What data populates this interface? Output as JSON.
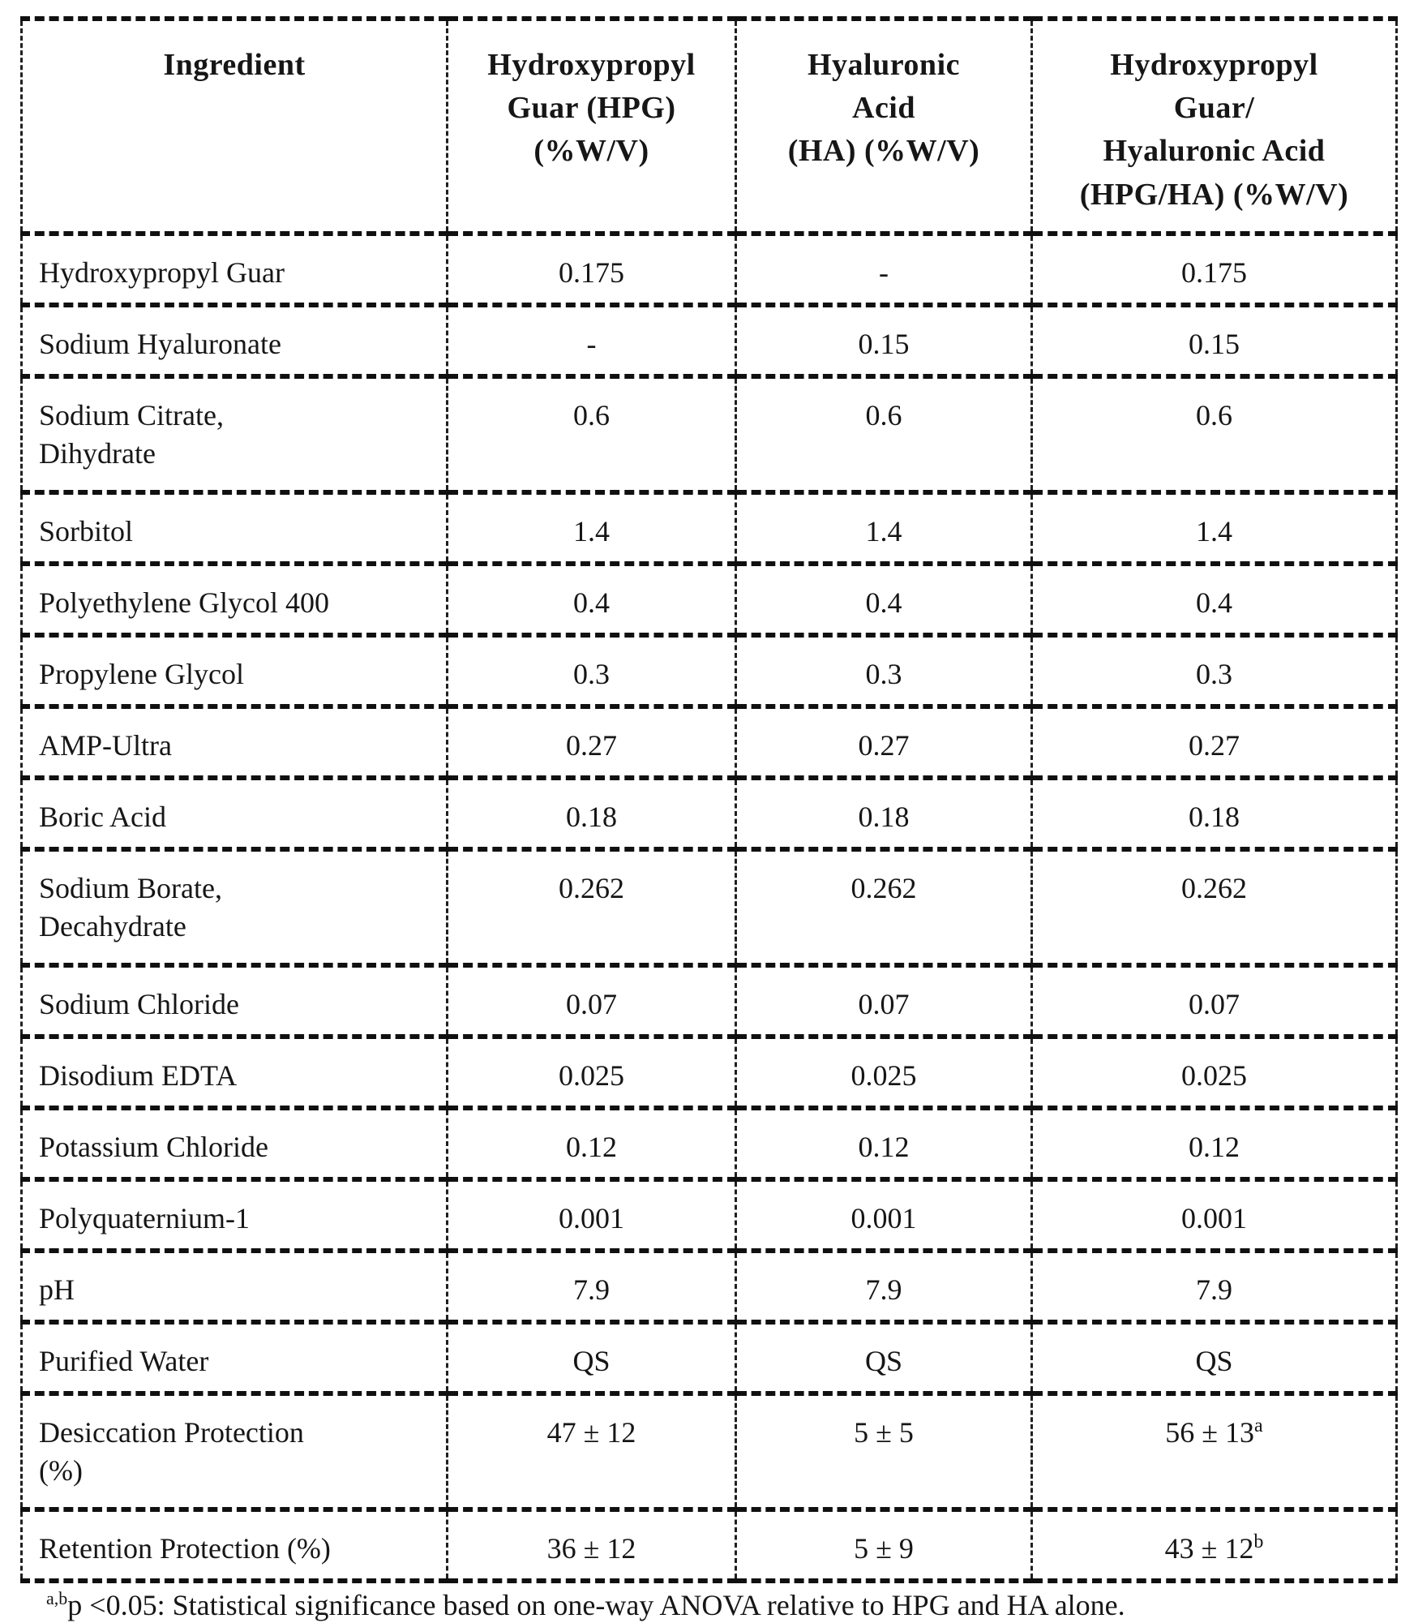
{
  "table": {
    "headers": [
      "Ingredient",
      "Hydroxypropyl\nGuar (HPG)\n(%W/V)",
      "Hyaluronic\nAcid\n(HA) (%W/V)",
      "Hydroxypropyl\nGuar/\nHyaluronic Acid\n(HPG/HA) (%W/V)"
    ],
    "rows": [
      {
        "ingredient": "Hydroxypropyl Guar",
        "hpg": "0.175",
        "ha": "-",
        "hpg_ha": "0.175"
      },
      {
        "ingredient": "Sodium Hyaluronate",
        "hpg": "-",
        "ha": "0.15",
        "hpg_ha": "0.15"
      },
      {
        "ingredient": "Sodium Citrate,\nDihydrate",
        "hpg": "0.6",
        "ha": "0.6",
        "hpg_ha": "0.6"
      },
      {
        "ingredient": "Sorbitol",
        "hpg": "1.4",
        "ha": "1.4",
        "hpg_ha": "1.4"
      },
      {
        "ingredient": "Polyethylene Glycol 400",
        "hpg": "0.4",
        "ha": "0.4",
        "hpg_ha": "0.4"
      },
      {
        "ingredient": "Propylene Glycol",
        "hpg": "0.3",
        "ha": "0.3",
        "hpg_ha": "0.3"
      },
      {
        "ingredient": "AMP-Ultra",
        "hpg": "0.27",
        "ha": "0.27",
        "hpg_ha": "0.27"
      },
      {
        "ingredient": "Boric Acid",
        "hpg": "0.18",
        "ha": "0.18",
        "hpg_ha": "0.18"
      },
      {
        "ingredient": "Sodium Borate,\nDecahydrate",
        "hpg": "0.262",
        "ha": "0.262",
        "hpg_ha": "0.262"
      },
      {
        "ingredient": "Sodium Chloride",
        "hpg": "0.07",
        "ha": "0.07",
        "hpg_ha": "0.07"
      },
      {
        "ingredient": "Disodium EDTA",
        "hpg": "0.025",
        "ha": "0.025",
        "hpg_ha": "0.025"
      },
      {
        "ingredient": "Potassium Chloride",
        "hpg": "0.12",
        "ha": "0.12",
        "hpg_ha": "0.12"
      },
      {
        "ingredient": "Polyquaternium-1",
        "hpg": "0.001",
        "ha": "0.001",
        "hpg_ha": "0.001"
      },
      {
        "ingredient": "pH",
        "hpg": "7.9",
        "ha": "7.9",
        "hpg_ha": "7.9"
      },
      {
        "ingredient": "Purified Water",
        "hpg": "QS",
        "ha": "QS",
        "hpg_ha": "QS"
      },
      {
        "ingredient": "Desiccation Protection\n(%)",
        "hpg": "47 ± 12",
        "ha": "5 ± 5",
        "hpg_ha": "56 ± 13",
        "hpg_ha_sup": "a"
      },
      {
        "ingredient": "Retention Protection (%)",
        "hpg": "36 ± 12",
        "ha": "5 ± 9",
        "hpg_ha": "43 ± 12",
        "hpg_ha_sup": "b"
      }
    ]
  },
  "footnote": {
    "marker": "a,b",
    "text": "p <0.05:  Statistical significance based on one-way ANOVA relative to HPG and HA alone."
  }
}
